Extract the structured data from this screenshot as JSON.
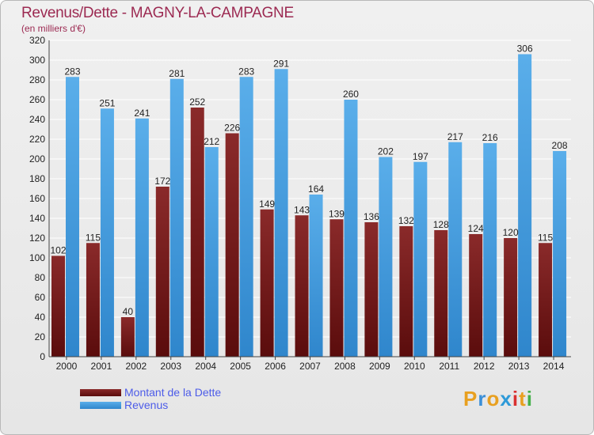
{
  "chart_data": {
    "type": "bar",
    "title": "Revenus/Dette - MAGNY-LA-CAMPAGNE",
    "subtitle": "(en milliers d'€)",
    "categories": [
      "2000",
      "2001",
      "2002",
      "2003",
      "2004",
      "2005",
      "2006",
      "2007",
      "2008",
      "2009",
      "2010",
      "2011",
      "2012",
      "2013",
      "2014"
    ],
    "series": [
      {
        "name": "Montant de la Dette",
        "color": "#7a1f1f",
        "values": [
          102,
          115,
          40,
          172,
          252,
          226,
          149,
          143,
          139,
          136,
          132,
          128,
          124,
          120,
          115
        ]
      },
      {
        "name": "Revenus",
        "color": "#4ea6e6",
        "values": [
          283,
          251,
          241,
          281,
          212,
          283,
          291,
          164,
          260,
          202,
          197,
          217,
          216,
          306,
          208
        ]
      }
    ],
    "yticks": [
      0,
      20,
      40,
      60,
      80,
      100,
      120,
      140,
      160,
      180,
      200,
      220,
      240,
      260,
      280,
      300,
      320
    ],
    "ylim": [
      0,
      320
    ],
    "grid": true,
    "legend_position": "bottom-left"
  },
  "logo": {
    "letters": [
      "P",
      "r",
      "o",
      "x",
      "i",
      "t",
      "i"
    ],
    "colors": [
      "#e8a020",
      "#3b8fd8",
      "#e8a020",
      "#2e9ad8",
      "#d93030",
      "#e8a020",
      "#45b04a"
    ]
  }
}
